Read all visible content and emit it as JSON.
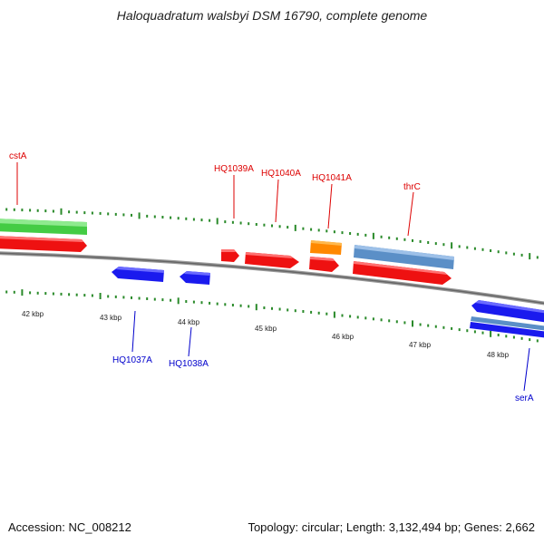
{
  "title": "Haloquadratum walsbyi DSM 16790, complete genome",
  "footer": {
    "accession": "Accession: NC_008212",
    "topology": "Topology: circular; Length: 3,132,494 bp; Genes: 2,662"
  },
  "colors": {
    "forward_gene_label": "#dd0000",
    "reverse_gene_label": "#0000cc",
    "tick": "#2a8a2a",
    "backbone": "#808080",
    "cds_red": "#ee1111",
    "cds_blue": "#1a1aee",
    "cds_green": "#33cc33",
    "cds_orange": "#ff8800",
    "cds_steelblue": "#5b8fc7"
  },
  "kbp_labels": [
    "42 kbp",
    "43 kbp",
    "44 kbp",
    "45 kbp",
    "46 kbp",
    "47 kbp",
    "48 kbp"
  ],
  "gene_labels": {
    "forward": [
      "cstA",
      "HQ1039A",
      "HQ1040A",
      "HQ1041A",
      "thrC"
    ],
    "reverse": [
      "HQ1037A",
      "HQ1038A",
      "serA"
    ]
  }
}
